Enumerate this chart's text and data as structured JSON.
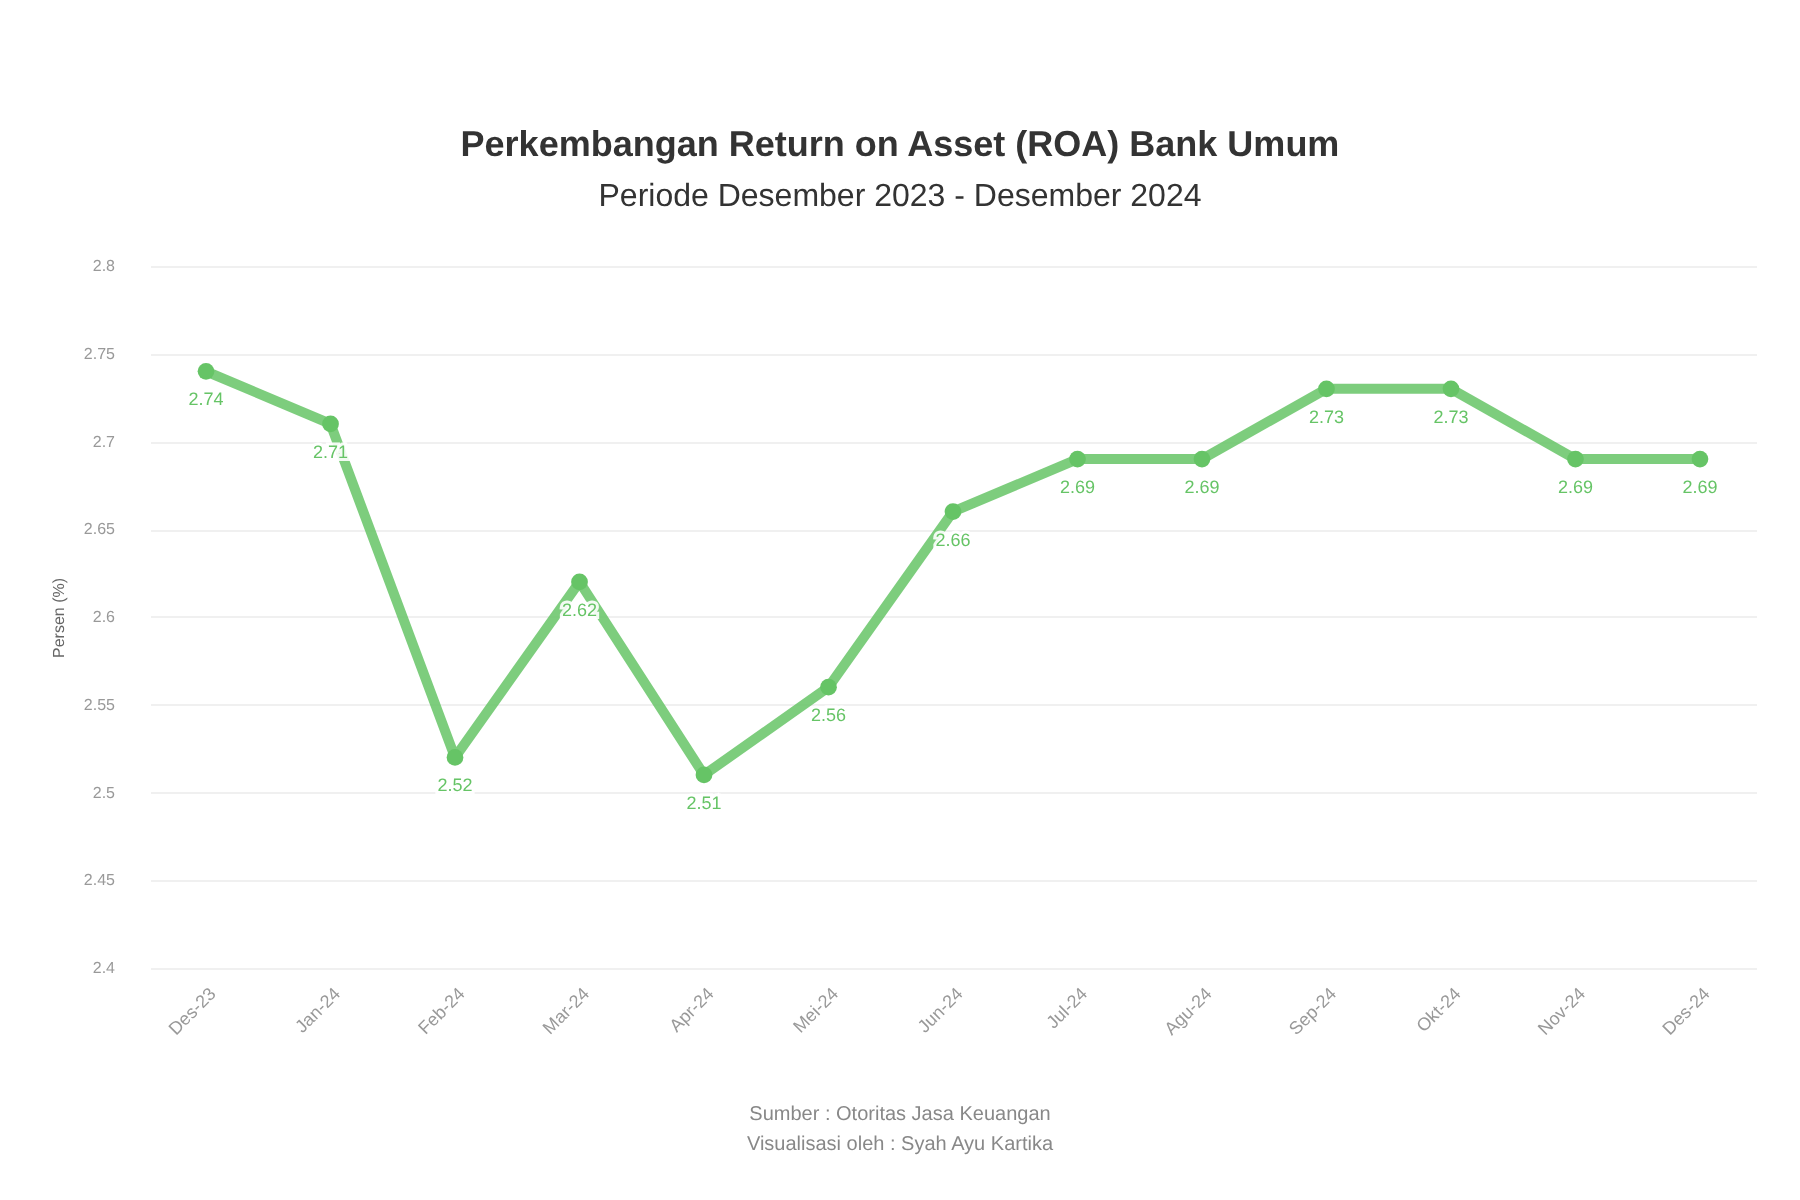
{
  "chart_data": {
    "type": "line",
    "title": "Perkembangan Return on Asset (ROA) Bank Umum",
    "subtitle": "Periode Desember 2023 - Desember 2024",
    "ylabel": "Persen (%)",
    "annotations": [
      "Sumber : Otoritas Jasa Keuangan",
      "Visualisasi oleh : Syah Ayu Kartika"
    ],
    "categories": [
      "Des-23",
      "Jan-24",
      "Feb-24",
      "Mar-24",
      "Apr-24",
      "Mei-24",
      "Jun-24",
      "Jul-24",
      "Agu-24",
      "Sep-24",
      "Okt-24",
      "Nov-24",
      "Des-24"
    ],
    "series": [
      {
        "color": "#66c466",
        "values": [
          2.74,
          2.71,
          2.52,
          2.62,
          2.51,
          2.56,
          2.66,
          2.69,
          2.69,
          2.73,
          2.73,
          2.69,
          2.69
        ]
      }
    ],
    "ylim": [
      2.4,
      2.8
    ],
    "yticks": [
      2.4,
      2.45,
      2.5,
      2.55,
      2.6,
      2.65,
      2.7,
      2.75,
      2.8
    ],
    "grid": "y",
    "marker": "circle",
    "line_style": "solid",
    "data_labels": true
  }
}
